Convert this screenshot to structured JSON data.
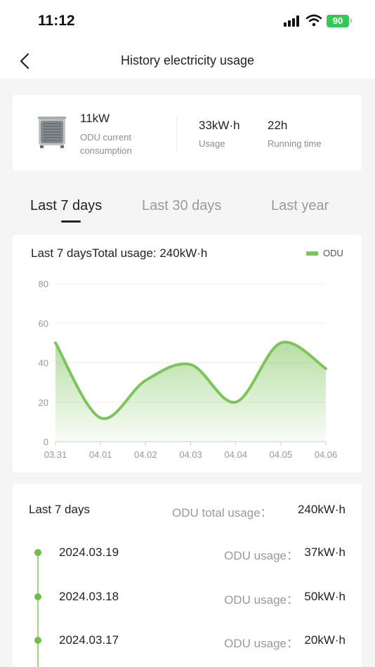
{
  "status_bar": {
    "time": "11:12",
    "battery": "90"
  },
  "nav": {
    "title": "History electricity usage"
  },
  "summary": {
    "current_value": "11kW",
    "current_label": "ODU current consumption",
    "usage_value": "33kW·h",
    "usage_label": "Usage",
    "running_value": "22h",
    "running_label": "Running time"
  },
  "tabs": [
    {
      "label": "Last 7 days",
      "active": true
    },
    {
      "label": "Last 30 days",
      "active": false
    },
    {
      "label": "Last year",
      "active": false
    }
  ],
  "chart_card": {
    "title": "Last 7 daysTotal usage: 240kW·h",
    "legend": "ODU"
  },
  "chart_data": {
    "type": "area",
    "categories": [
      "03.31",
      "04.01",
      "04.02",
      "04.03",
      "04.04",
      "04.05",
      "04.06"
    ],
    "series": [
      {
        "name": "ODU",
        "values": [
          50,
          12,
          31,
          39,
          20,
          50,
          37
        ]
      }
    ],
    "ylim": [
      0,
      80
    ],
    "yticks": [
      0,
      20,
      40,
      60,
      80
    ],
    "smooth": true,
    "grid": true,
    "color": "#7dc45a"
  },
  "list": {
    "title": "Last 7 days",
    "total_label": "ODU total usage：",
    "total_value": "240kW·h",
    "rows": [
      {
        "date": "2024.03.19",
        "label": "ODU usage：",
        "value": "37kW·h"
      },
      {
        "date": "2024.03.18",
        "label": "ODU usage：",
        "value": "50kW·h"
      },
      {
        "date": "2024.03.17",
        "label": "ODU usage：",
        "value": "20kW·h"
      }
    ]
  }
}
